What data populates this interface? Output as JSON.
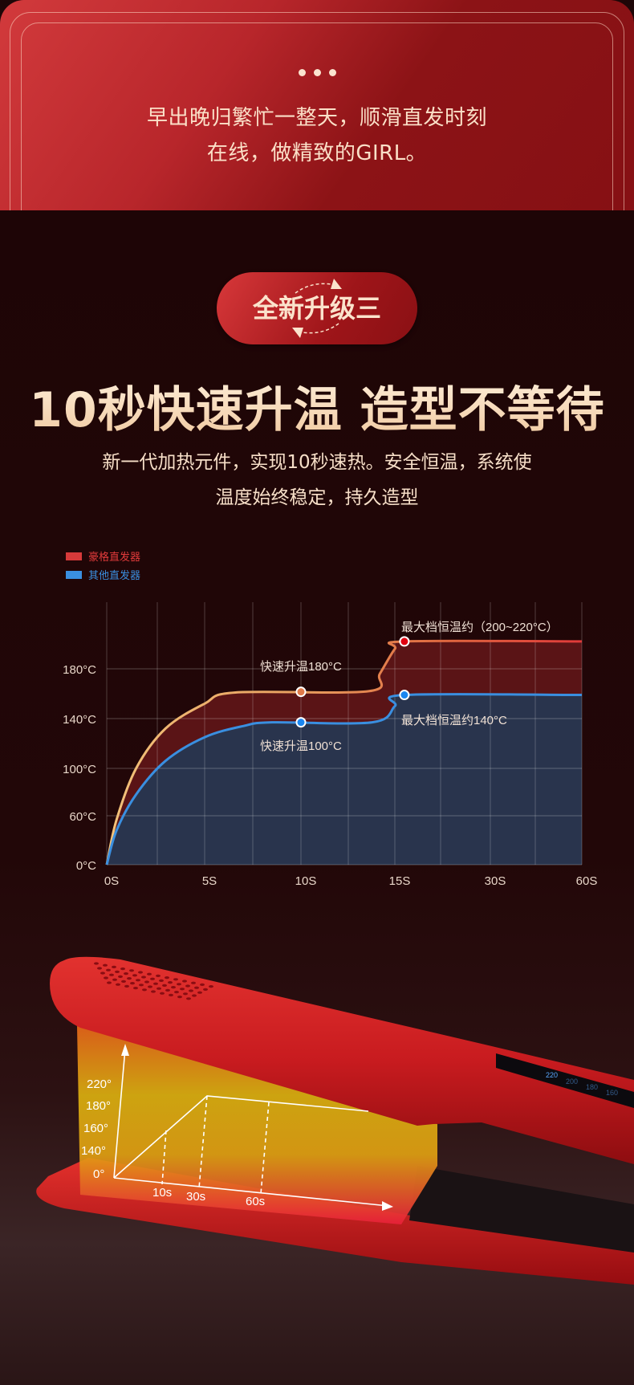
{
  "intro": {
    "dots": "•••",
    "line1": "早出晚归繁忙一整天，顺滑直发时刻",
    "line2": "在线，做精致的GIRL。"
  },
  "badge": {
    "label": "全新升级三",
    "icon": "refresh-arrows-icon"
  },
  "headline": "10秒快速升温 造型不等待",
  "subtitle": {
    "line1": "新一代加热元件，实现10秒速热。安全恒温，系统使",
    "line2": "温度始终稳定，持久造型"
  },
  "colors": {
    "accent": "#c8282d",
    "cream": "#f6d9b9",
    "series_red": "#d73a3a",
    "series_blue": "#3a8fe0",
    "background": "#1e0607"
  },
  "chart_data": {
    "type": "area",
    "legend": [
      {
        "name": "豪格直发器",
        "color": "#d73a3a"
      },
      {
        "name": "其他直发器",
        "color": "#3a8fe0"
      }
    ],
    "legend_placement": "top-left",
    "x_ticks": [
      "0S",
      "5S",
      "10S",
      "15S",
      "30S",
      "60S"
    ],
    "x_tick_values": [
      0,
      5,
      10,
      15,
      30,
      60
    ],
    "y_ticks": [
      "0°C",
      "60°C",
      "100°C",
      "140°C",
      "180°C"
    ],
    "y_tick_values": [
      0,
      60,
      100,
      140,
      180
    ],
    "grid": true,
    "series": [
      {
        "name": "豪格直发器",
        "x": [
          0,
          0.5,
          1.5,
          3,
          5,
          6.6,
          13.6,
          14.2,
          15,
          16.5,
          60
        ],
        "y": [
          0,
          55,
          100,
          132,
          152,
          161,
          162,
          176,
          196,
          202,
          202
        ]
      },
      {
        "name": "其他直发器",
        "x": [
          0,
          0.5,
          1.5,
          3,
          5,
          7,
          8.5,
          13.8,
          15,
          16.5,
          60
        ],
        "y": [
          0,
          42,
          78,
          106,
          125,
          134,
          137,
          137,
          150,
          159,
          159
        ]
      }
    ],
    "markers": [
      {
        "series": 0,
        "x": 10,
        "y": 161.5,
        "color": "#e07a4a"
      },
      {
        "series": 0,
        "x": 16.5,
        "y": 202,
        "color": "#e00010"
      },
      {
        "series": 1,
        "x": 10,
        "y": 137,
        "color": "#1a86f0"
      },
      {
        "series": 1,
        "x": 16.5,
        "y": 159,
        "color": "#1a86f0"
      }
    ],
    "annotations": [
      {
        "text": "快速升温180°C"
      },
      {
        "text": "快速升温100°C"
      },
      {
        "text": "最大档恒温约（200~220°C）"
      },
      {
        "text": "最大档恒温约140°C"
      }
    ]
  },
  "product": {
    "inset_y_labels": [
      "220°",
      "180°",
      "160°",
      "140°",
      "0°"
    ],
    "inset_x_labels": [
      "10s",
      "30s",
      "60s"
    ],
    "display_digits": [
      "220",
      "200",
      "180",
      "160"
    ]
  }
}
